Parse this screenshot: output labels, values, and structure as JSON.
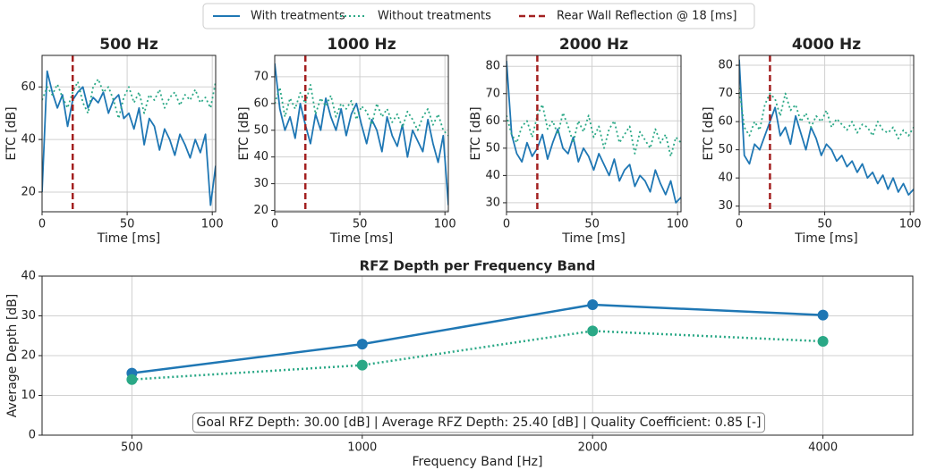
{
  "chart_data": [
    {
      "type": "line",
      "title": "500 Hz",
      "xlabel": "Time [ms]",
      "ylabel": "ETC [dB]",
      "x": [
        0,
        3,
        6,
        9,
        12,
        15,
        18,
        21,
        24,
        27,
        30,
        33,
        36,
        39,
        42,
        45,
        48,
        51,
        54,
        57,
        60,
        63,
        66,
        69,
        72,
        75,
        78,
        81,
        84,
        87,
        90,
        93,
        96,
        99,
        102
      ],
      "xlim": [
        0,
        102
      ],
      "xticks": [
        0,
        50,
        100
      ],
      "ylim": [
        12.5,
        72
      ],
      "yticks": [
        20,
        40,
        60
      ],
      "grid": true,
      "series": [
        {
          "name": "With treatments",
          "color": "#1f77b4",
          "style": "solid",
          "values": [
            20,
            66,
            58,
            52,
            57,
            45,
            55,
            58,
            60,
            52,
            56,
            54,
            58,
            50,
            55,
            57,
            48,
            50,
            44,
            52,
            38,
            48,
            45,
            36,
            44,
            40,
            34,
            42,
            38,
            33,
            40,
            35,
            42,
            15,
            30
          ]
        },
        {
          "name": "Without treatments",
          "color": "#2aa886",
          "style": "dotted",
          "values": [
            55,
            60,
            57,
            61,
            56,
            52,
            58,
            62,
            54,
            50,
            60,
            63,
            58,
            60,
            55,
            48,
            56,
            60,
            54,
            58,
            50,
            57,
            55,
            59,
            52,
            56,
            58,
            53,
            57,
            55,
            59,
            54,
            56,
            52,
            62
          ]
        }
      ],
      "vline": {
        "name": "Rear Wall Reflection @ 18 [ms]",
        "x": 18,
        "color": "#a32020"
      }
    },
    {
      "type": "line",
      "title": "1000 Hz",
      "xlabel": "Time [ms]",
      "ylabel": "ETC [dB]",
      "x": [
        0,
        3,
        6,
        9,
        12,
        15,
        18,
        21,
        24,
        27,
        30,
        33,
        36,
        39,
        42,
        45,
        48,
        51,
        54,
        57,
        60,
        63,
        66,
        69,
        72,
        75,
        78,
        81,
        84,
        87,
        90,
        93,
        96,
        99,
        102
      ],
      "xlim": [
        0,
        102
      ],
      "xticks": [
        0,
        50,
        100
      ],
      "ylim": [
        19.5,
        78
      ],
      "yticks": [
        20,
        30,
        40,
        50,
        60,
        70
      ],
      "grid": true,
      "series": [
        {
          "color": "#1f77b4",
          "style": "solid",
          "values": [
            75,
            58,
            50,
            55,
            47,
            60,
            52,
            45,
            56,
            50,
            62,
            55,
            50,
            58,
            48,
            56,
            60,
            52,
            45,
            54,
            50,
            42,
            55,
            48,
            44,
            52,
            40,
            50,
            46,
            42,
            54,
            45,
            38,
            48,
            22
          ]
        },
        {
          "color": "#2aa886",
          "style": "dotted",
          "values": [
            60,
            66,
            55,
            62,
            58,
            64,
            60,
            67,
            56,
            62,
            59,
            63,
            55,
            60,
            58,
            61,
            54,
            59,
            57,
            52,
            60,
            55,
            58,
            53,
            56,
            51,
            57,
            54,
            50,
            55,
            58,
            52,
            56,
            50,
            48
          ]
        }
      ],
      "vline": {
        "x": 18,
        "color": "#a32020"
      }
    },
    {
      "type": "line",
      "title": "2000 Hz",
      "xlabel": "Time [ms]",
      "ylabel": "ETC [dB]",
      "x": [
        0,
        3,
        6,
        9,
        12,
        15,
        18,
        21,
        24,
        27,
        30,
        33,
        36,
        39,
        42,
        45,
        48,
        51,
        54,
        57,
        60,
        63,
        66,
        69,
        72,
        75,
        78,
        81,
        84,
        87,
        90,
        93,
        96,
        99,
        102
      ],
      "xlim": [
        0,
        102
      ],
      "xticks": [
        0,
        50,
        100
      ],
      "ylim": [
        26.7,
        84
      ],
      "yticks": [
        30,
        40,
        50,
        60,
        70,
        80
      ],
      "grid": true,
      "series": [
        {
          "color": "#1f77b4",
          "style": "solid",
          "values": [
            82,
            55,
            48,
            45,
            52,
            47,
            50,
            55,
            46,
            52,
            57,
            50,
            48,
            54,
            45,
            50,
            47,
            42,
            48,
            44,
            40,
            46,
            38,
            42,
            44,
            36,
            40,
            38,
            34,
            42,
            37,
            33,
            38,
            30,
            32
          ]
        },
        {
          "color": "#2aa886",
          "style": "dotted",
          "values": [
            62,
            55,
            52,
            58,
            60,
            54,
            62,
            66,
            57,
            60,
            55,
            63,
            58,
            52,
            60,
            56,
            62,
            54,
            58,
            50,
            57,
            60,
            52,
            55,
            58,
            48,
            56,
            53,
            50,
            57,
            52,
            55,
            47,
            54,
            52
          ]
        }
      ],
      "vline": {
        "x": 18,
        "color": "#a32020"
      }
    },
    {
      "type": "line",
      "title": "4000 Hz",
      "xlabel": "Time [ms]",
      "ylabel": "ETC [dB]",
      "x": [
        0,
        3,
        6,
        9,
        12,
        15,
        18,
        21,
        24,
        27,
        30,
        33,
        36,
        39,
        42,
        45,
        48,
        51,
        54,
        57,
        60,
        63,
        66,
        69,
        72,
        75,
        78,
        81,
        84,
        87,
        90,
        93,
        96,
        99,
        102
      ],
      "xlim": [
        0,
        102
      ],
      "xticks": [
        0,
        50,
        100
      ],
      "ylim": [
        28,
        83.5
      ],
      "yticks": [
        30,
        40,
        50,
        60,
        70,
        80
      ],
      "grid": true,
      "series": [
        {
          "color": "#1f77b4",
          "style": "solid",
          "values": [
            82,
            48,
            45,
            52,
            50,
            55,
            60,
            65,
            55,
            58,
            52,
            62,
            56,
            50,
            58,
            54,
            48,
            52,
            50,
            46,
            48,
            44,
            46,
            42,
            45,
            40,
            42,
            38,
            41,
            36,
            40,
            35,
            38,
            34,
            36
          ]
        },
        {
          "color": "#2aa886",
          "style": "dotted",
          "values": [
            72,
            58,
            55,
            60,
            57,
            66,
            70,
            68,
            62,
            70,
            64,
            66,
            60,
            63,
            58,
            62,
            60,
            64,
            58,
            61,
            59,
            57,
            60,
            56,
            59,
            58,
            55,
            60,
            57,
            56,
            58,
            54,
            57,
            55,
            58
          ]
        }
      ],
      "vline": {
        "x": 18,
        "color": "#a32020"
      }
    },
    {
      "type": "line",
      "title": "RFZ Depth per Frequency Band",
      "xlabel": "Frequency Band [Hz]",
      "ylabel": "Average Depth [dB]",
      "categories": [
        "500",
        "1000",
        "2000",
        "4000"
      ],
      "ylim": [
        0,
        40
      ],
      "yticks": [
        0,
        10,
        20,
        30,
        40
      ],
      "grid": true,
      "markers": true,
      "series": [
        {
          "color": "#1f77b4",
          "style": "solid",
          "values": [
            15.6,
            22.9,
            32.8,
            30.2
          ]
        },
        {
          "color": "#2aa886",
          "style": "dotted",
          "values": [
            14.0,
            17.6,
            26.2,
            23.6
          ]
        }
      ],
      "annotation": "Goal RFZ Depth: 30.00 [dB] | Average RFZ Depth: 25.40 [dB] | Quality Coefficient: 0.85 [-]"
    }
  ]
}
